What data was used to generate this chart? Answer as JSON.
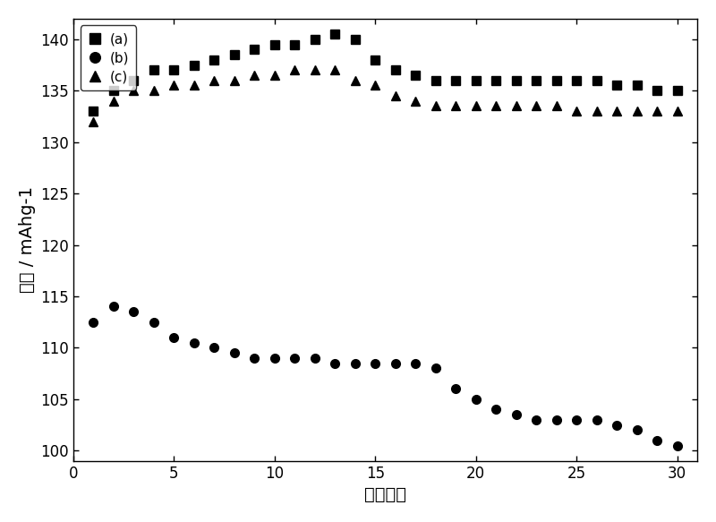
{
  "series_a": {
    "x": [
      1,
      2,
      3,
      4,
      5,
      6,
      7,
      8,
      9,
      10,
      11,
      12,
      13,
      14,
      15,
      16,
      17,
      18,
      19,
      20,
      21,
      22,
      23,
      24,
      25,
      26,
      27,
      28,
      29,
      30
    ],
    "y": [
      133,
      135,
      136,
      137,
      137,
      137.5,
      138,
      138.5,
      139,
      139.5,
      139.5,
      140,
      140.5,
      140,
      138,
      137,
      136.5,
      136,
      136,
      136,
      136,
      136,
      136,
      136,
      136,
      136,
      135.5,
      135.5,
      135,
      135
    ],
    "label": "(a)",
    "marker": "s",
    "color": "#000000"
  },
  "series_b": {
    "x": [
      1,
      2,
      3,
      4,
      5,
      6,
      7,
      8,
      9,
      10,
      11,
      12,
      13,
      14,
      15,
      16,
      17,
      18,
      19,
      20,
      21,
      22,
      23,
      24,
      25,
      26,
      27,
      28,
      29,
      30
    ],
    "y": [
      112.5,
      114,
      113.5,
      112.5,
      111,
      110.5,
      110,
      109.5,
      109,
      109,
      109,
      109,
      108.5,
      108.5,
      108.5,
      108.5,
      108.5,
      108,
      106,
      105,
      104,
      103.5,
      103,
      103,
      103,
      103,
      102.5,
      102,
      101,
      100.5
    ],
    "label": "(b)",
    "marker": "o",
    "color": "#000000"
  },
  "series_c": {
    "x": [
      1,
      2,
      3,
      4,
      5,
      6,
      7,
      8,
      9,
      10,
      11,
      12,
      13,
      14,
      15,
      16,
      17,
      18,
      19,
      20,
      21,
      22,
      23,
      24,
      25,
      26,
      27,
      28,
      29,
      30
    ],
    "y": [
      132,
      134,
      135,
      135,
      135.5,
      135.5,
      136,
      136,
      136.5,
      136.5,
      137,
      137,
      137,
      136,
      135.5,
      134.5,
      134,
      133.5,
      133.5,
      133.5,
      133.5,
      133.5,
      133.5,
      133.5,
      133,
      133,
      133,
      133,
      133,
      133
    ],
    "label": "(c)",
    "marker": "^",
    "color": "#000000"
  },
  "xlabel": "循环次数",
  "ylabel_cn": "容量",
  "ylabel_en": " / mAhg",
  "ylabel_sup": "-1",
  "xlim": [
    0,
    31
  ],
  "ylim": [
    99,
    142
  ],
  "xticks": [
    0,
    5,
    10,
    15,
    20,
    25,
    30
  ],
  "yticks": [
    100,
    105,
    110,
    115,
    120,
    125,
    130,
    135,
    140
  ],
  "marker_size": 7,
  "background_color": "#ffffff",
  "label_fontsize": 14,
  "tick_fontsize": 12,
  "legend_fontsize": 11
}
